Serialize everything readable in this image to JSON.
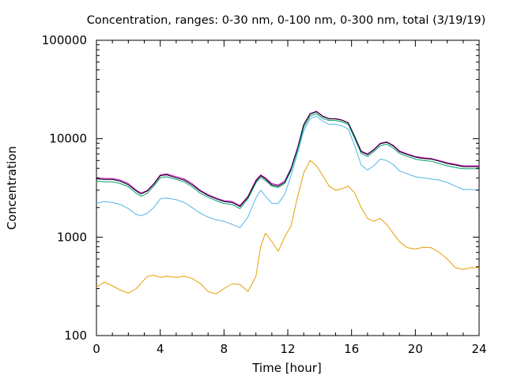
{
  "chart_data": {
    "type": "line",
    "title": "Concentration, ranges: 0-30 nm, 0-100 nm, 0-300 nm, total (3/19/19)",
    "xlabel": "Time [hour]",
    "ylabel": "Concentration",
    "xlim": [
      0,
      24
    ],
    "ylim": [
      100,
      100000
    ],
    "yscale": "log",
    "grid": false,
    "legend": "none",
    "x_ticks": [
      0,
      4,
      8,
      12,
      16,
      20,
      24
    ],
    "x_tick_labels": [
      "0",
      "4",
      "8",
      "12",
      "16",
      "20",
      "24"
    ],
    "y_ticks": [
      100,
      1000,
      10000,
      100000
    ],
    "y_tick_labels": [
      "100",
      "1000",
      "10000",
      "100000"
    ],
    "x": [
      0,
      0.5,
      1,
      1.5,
      2,
      2.5,
      2.8,
      3.2,
      3.6,
      4,
      4.4,
      5,
      5.5,
      6,
      6.5,
      7,
      7.5,
      8,
      8.5,
      9,
      9.5,
      10,
      10.3,
      10.6,
      11,
      11.4,
      11.8,
      12.2,
      12.6,
      13,
      13.4,
      13.8,
      14.2,
      14.6,
      15,
      15.4,
      15.8,
      16.2,
      16.6,
      17,
      17.4,
      17.8,
      18.2,
      18.6,
      19,
      19.5,
      20,
      20.5,
      21,
      21.5,
      22,
      22.5,
      23,
      23.5,
      24
    ],
    "series": [
      {
        "color": "#cc00cc",
        "values": [
          4000,
          3950,
          3950,
          3800,
          3500,
          3000,
          2800,
          3000,
          3500,
          4300,
          4400,
          4100,
          3900,
          3500,
          3000,
          2700,
          2500,
          2350,
          2300,
          2100,
          2600,
          3800,
          4300,
          4000,
          3500,
          3400,
          3700,
          5000,
          8000,
          14000,
          18000,
          19000,
          17000,
          16000,
          16000,
          15500,
          14500,
          10500,
          7500,
          7000,
          7800,
          9000,
          9300,
          8600,
          7500,
          7000,
          6600,
          6400,
          6300,
          6000,
          5700,
          5500,
          5300,
          5300,
          5300
        ]
      },
      {
        "color": "#000000",
        "values": [
          3900,
          3850,
          3850,
          3700,
          3400,
          2950,
          2750,
          2950,
          3450,
          4200,
          4300,
          4000,
          3800,
          3400,
          2950,
          2650,
          2450,
          2300,
          2250,
          2050,
          2550,
          3700,
          4200,
          3900,
          3400,
          3300,
          3600,
          4900,
          7800,
          13800,
          17800,
          18800,
          16800,
          15900,
          15900,
          15400,
          14400,
          10400,
          7400,
          6900,
          7700,
          8900,
          9200,
          8500,
          7400,
          6900,
          6500,
          6300,
          6200,
          5900,
          5600,
          5400,
          5200,
          5200,
          5200
        ]
      },
      {
        "color": "#009e73",
        "values": [
          3700,
          3650,
          3650,
          3500,
          3250,
          2800,
          2600,
          2800,
          3300,
          4000,
          4100,
          3850,
          3650,
          3250,
          2800,
          2550,
          2350,
          2200,
          2150,
          1950,
          2450,
          3550,
          4050,
          3750,
          3300,
          3200,
          3500,
          4700,
          7500,
          13000,
          17000,
          18000,
          16000,
          15300,
          15300,
          14800,
          13900,
          10000,
          7100,
          6600,
          7400,
          8500,
          8800,
          8100,
          7100,
          6600,
          6200,
          6000,
          5900,
          5600,
          5300,
          5100,
          4950,
          4950,
          4950
        ]
      },
      {
        "color": "#56b4e9",
        "values": [
          2200,
          2300,
          2250,
          2150,
          1950,
          1700,
          1650,
          1750,
          2000,
          2450,
          2500,
          2400,
          2250,
          2000,
          1750,
          1600,
          1500,
          1450,
          1350,
          1250,
          1600,
          2500,
          3000,
          2600,
          2200,
          2200,
          2700,
          4200,
          7000,
          12000,
          16000,
          17000,
          15000,
          14000,
          14000,
          13500,
          12500,
          8500,
          5400,
          4800,
          5300,
          6200,
          6000,
          5500,
          4700,
          4400,
          4100,
          4000,
          3900,
          3800,
          3600,
          3300,
          3050,
          3050,
          3000
        ]
      },
      {
        "color": "#e69f00",
        "values": [
          310,
          350,
          320,
          290,
          270,
          300,
          340,
          400,
          410,
          390,
          400,
          390,
          400,
          380,
          340,
          280,
          265,
          300,
          335,
          330,
          280,
          400,
          800,
          1100,
          900,
          720,
          1000,
          1300,
          2500,
          4500,
          6000,
          5300,
          4200,
          3300,
          3000,
          3100,
          3300,
          2800,
          2000,
          1550,
          1450,
          1550,
          1350,
          1100,
          900,
          780,
          760,
          790,
          780,
          700,
          600,
          490,
          470,
          490,
          490
        ]
      }
    ]
  }
}
